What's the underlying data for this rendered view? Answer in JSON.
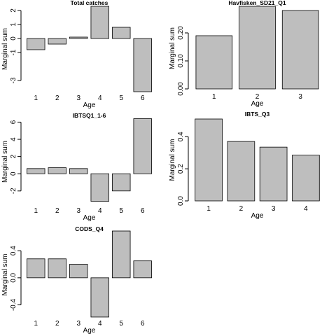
{
  "chart_data": [
    {
      "type": "bar",
      "title": "Total catches",
      "xlabel": "Age",
      "ylabel": "Marginal sum",
      "categories": [
        "1",
        "2",
        "3",
        "4",
        "5",
        "6"
      ],
      "values": [
        -0.8,
        -0.4,
        0.1,
        2.3,
        0.8,
        -4.2
      ],
      "ylim": [
        -3.7,
        2.2
      ],
      "yticks": [
        -3,
        -1,
        0,
        1,
        2
      ],
      "ytick_labels": [
        "-3",
        "-1",
        "0",
        "1",
        "2"
      ],
      "grid": false,
      "bar_color": "#bebebe"
    },
    {
      "type": "bar",
      "title": "Havfisken_SD21_Q1",
      "xlabel": "Age",
      "ylabel": "Marginal sum",
      "categories": [
        "1",
        "2",
        "3"
      ],
      "values": [
        0.19,
        0.295,
        0.28
      ],
      "ylim": [
        0,
        0.29
      ],
      "yticks": [
        0.0,
        0.1,
        0.2
      ],
      "ytick_labels": [
        "0.00",
        "0.10",
        "0.20"
      ],
      "grid": false,
      "bar_color": "#bebebe"
    },
    {
      "type": "bar",
      "title": "IBTSQ1_1-6",
      "xlabel": "Age",
      "ylabel": "Marginal sum",
      "categories": [
        "1",
        "2",
        "3",
        "4",
        "5",
        "6"
      ],
      "values": [
        0.6,
        0.7,
        0.6,
        -3.2,
        -2.0,
        6.4
      ],
      "ylim": [
        -3.4,
        6.2
      ],
      "yticks": [
        -2,
        0,
        2,
        4,
        6
      ],
      "ytick_labels": [
        "-2",
        "0",
        "2",
        "4",
        "6"
      ],
      "grid": false,
      "bar_color": "#bebebe"
    },
    {
      "type": "bar",
      "title": "IBTS_Q3",
      "xlabel": "Age",
      "ylabel": "Marginal sum",
      "categories": [
        "1",
        "2",
        "3",
        "4"
      ],
      "values": [
        0.51,
        0.37,
        0.335,
        0.285
      ],
      "ylim": [
        0,
        0.51
      ],
      "yticks": [
        0.0,
        0.2,
        0.4
      ],
      "ytick_labels": [
        "0.0",
        "0.2",
        "0.4"
      ],
      "grid": false,
      "bar_color": "#bebebe"
    },
    {
      "type": "bar",
      "title": "CODS_Q4",
      "xlabel": "Age",
      "ylabel": "Marginal sum",
      "categories": [
        "1",
        "2",
        "3",
        "4",
        "5",
        "6"
      ],
      "values": [
        0.28,
        0.28,
        0.2,
        -0.58,
        0.7,
        0.25
      ],
      "ylim": [
        -0.56,
        0.65
      ],
      "yticks": [
        -0.4,
        0.0,
        0.4
      ],
      "ytick_labels": [
        "-0.4",
        "0.0",
        "0.4"
      ],
      "grid": false,
      "bar_color": "#bebebe"
    }
  ]
}
